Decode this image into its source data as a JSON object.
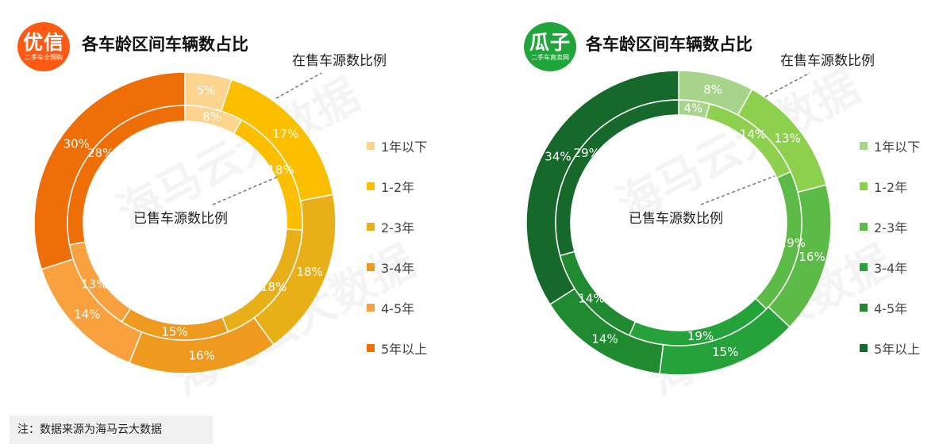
{
  "watermark": "海马云大数据",
  "note": "注：数据来源为海马云大数据",
  "panels": [
    {
      "brand": {
        "name": "优信",
        "sub": "二手车全国购"
      },
      "title": "各车龄区间车辆数占比",
      "outer_label": "在售车源数比例",
      "inner_label": "已售车源数比例",
      "legend": [
        "1年以下",
        "1-2年",
        "2-3年",
        "3-4年",
        "4-5年",
        "5年以上"
      ],
      "colors": [
        "#fcd48e",
        "#fbbf00",
        "#e8af18",
        "#ee9a1e",
        "#f9a13f",
        "#ee6e08"
      ]
    },
    {
      "brand": {
        "name": "瓜子",
        "sub": "二手车直卖网"
      },
      "title": "各车龄区间车辆数占比",
      "outer_label": "在售车源数比例",
      "inner_label": "已售车源数比例",
      "legend": [
        "1年以下",
        "1-2年",
        "2-3年",
        "3-4年",
        "4-5年",
        "5年以上"
      ],
      "colors": [
        "#a7d48a",
        "#8dd04e",
        "#5cba46",
        "#25a33a",
        "#1f8a2f",
        "#16692a"
      ]
    }
  ],
  "chart_data": [
    {
      "type": "pie",
      "title": "各车龄区间车辆数占比",
      "categories": [
        "1年以下",
        "1-2年",
        "2-3年",
        "3-4年",
        "4-5年",
        "5年以上"
      ],
      "series": [
        {
          "name": "在售车源数比例",
          "values": [
            5,
            17,
            18,
            16,
            14,
            30
          ],
          "labels": [
            "5%",
            "17%",
            "18%",
            "16%",
            "14%",
            "30%"
          ]
        },
        {
          "name": "已售车源数比例",
          "values": [
            8,
            18,
            18,
            15,
            13,
            28
          ],
          "labels": [
            "8%",
            "18%",
            "18%",
            "15%",
            "13%",
            "28%"
          ]
        }
      ]
    },
    {
      "type": "pie",
      "title": "各车龄区间车辆数占比",
      "categories": [
        "1年以下",
        "1-2年",
        "2-3年",
        "3-4年",
        "4-5年",
        "5年以上"
      ],
      "series": [
        {
          "name": "在售车源数比例",
          "values": [
            8,
            13,
            16,
            15,
            14,
            34
          ],
          "labels": [
            "8%",
            "13%",
            "16%",
            "15%",
            "14%",
            "34%"
          ]
        },
        {
          "name": "已售车源数比例",
          "values": [
            4,
            14,
            19,
            19,
            14,
            29
          ],
          "labels": [
            "4%",
            "14%",
            "19%",
            "19%",
            "14%",
            "29%"
          ]
        }
      ]
    }
  ]
}
